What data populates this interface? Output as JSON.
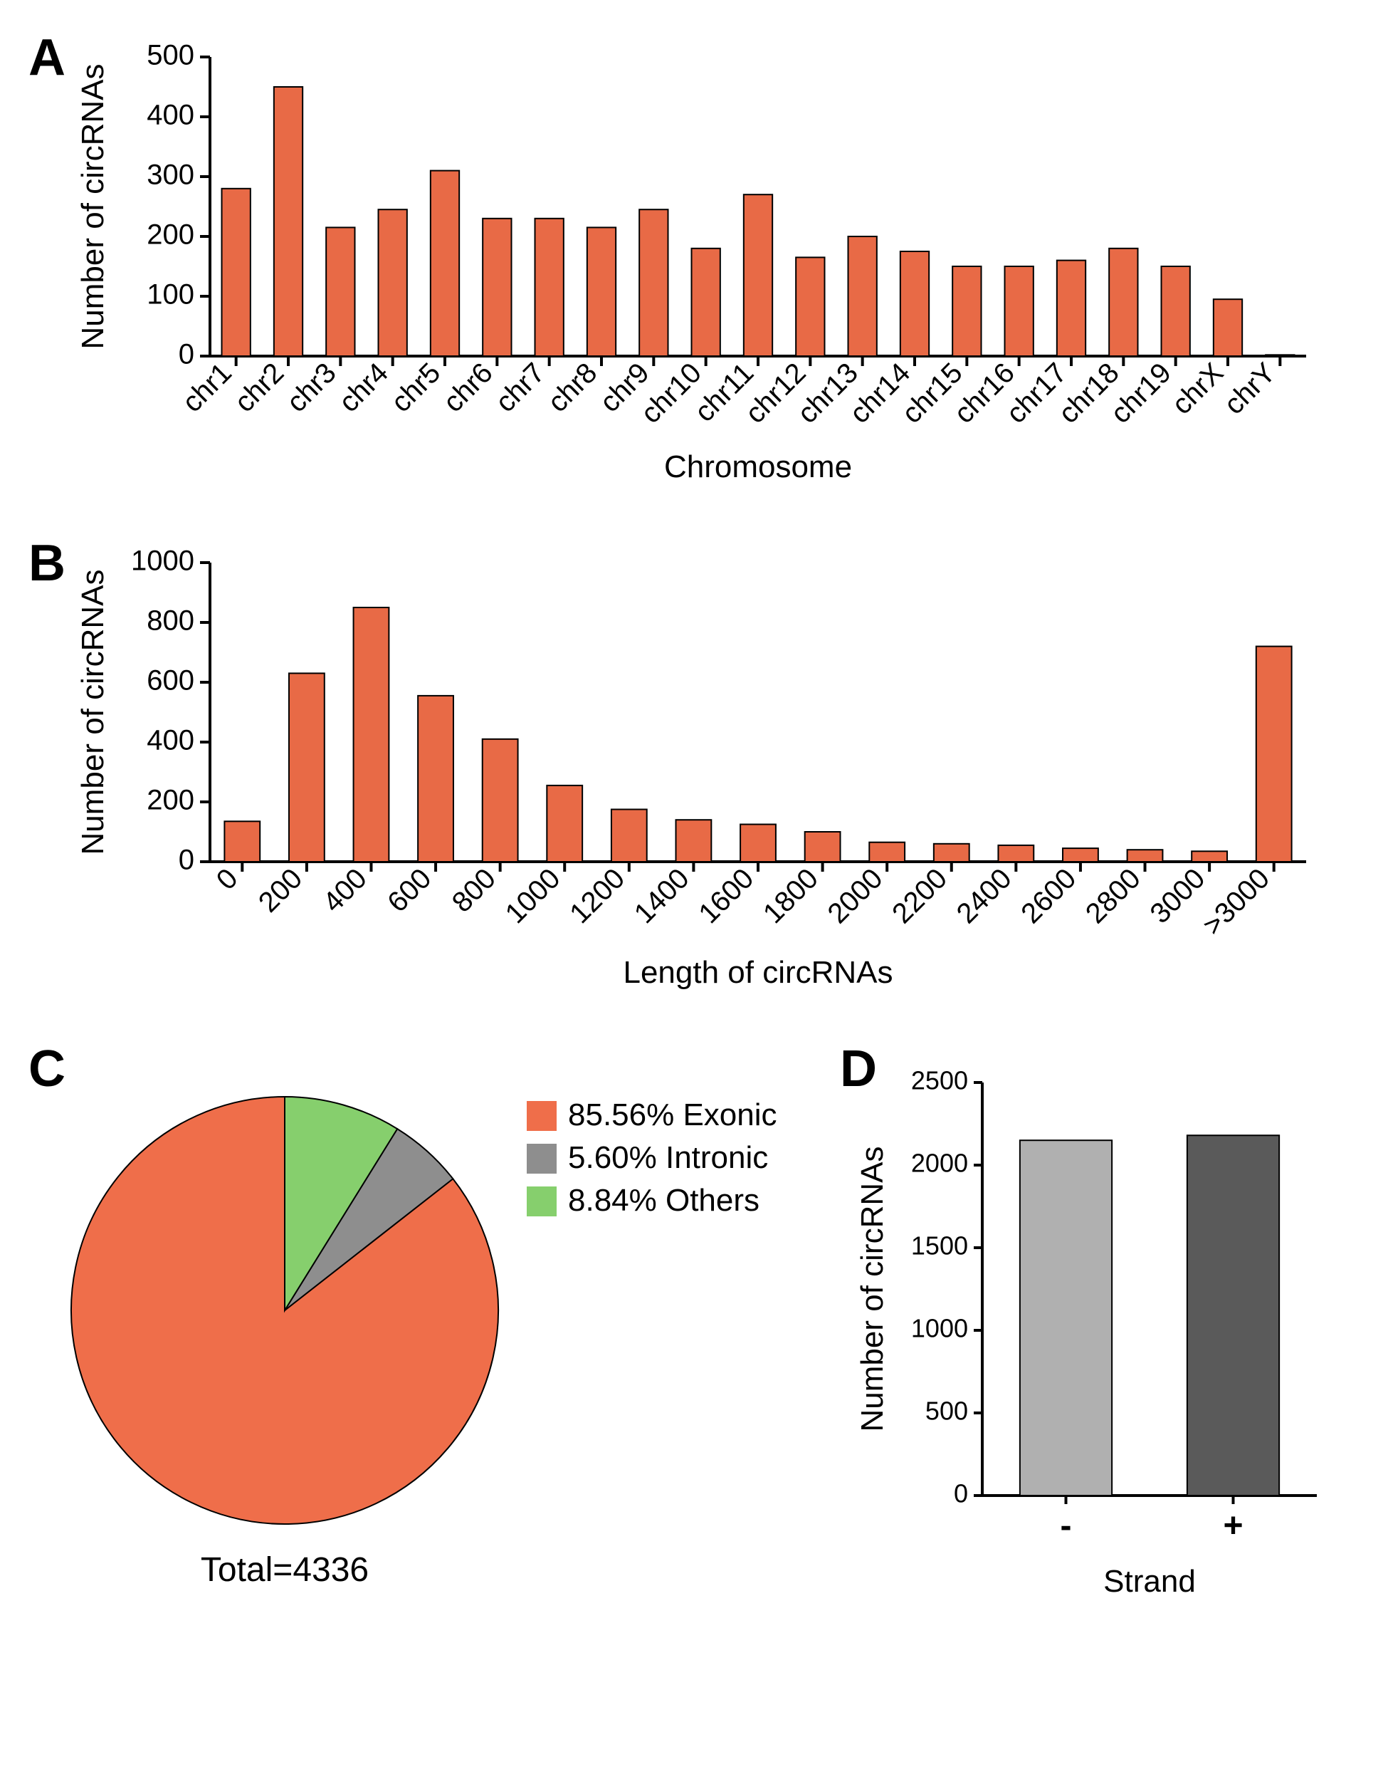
{
  "colors": {
    "bar_fill": "#e86a46",
    "bar_stroke": "#000000",
    "axis": "#000000",
    "text": "#000000",
    "pie_exonic": "#ef6e4a",
    "pie_intronic": "#8e8e8e",
    "pie_others": "#86cf6d",
    "bar_d_minus": "#b0b0b0",
    "bar_d_plus": "#5a5a5a",
    "background": "#ffffff"
  },
  "panelA": {
    "label": "A",
    "title": "",
    "ylabel": "Number of circRNAs",
    "xlabel": "Chromosome",
    "ylim": [
      0,
      500
    ],
    "ytick_step": 100,
    "bar_width": 0.55,
    "axis_fontsize": 44,
    "tick_fontsize": 40,
    "tick_rotate": -45,
    "categories": [
      "chr1",
      "chr2",
      "chr3",
      "chr4",
      "chr5",
      "chr6",
      "chr7",
      "chr8",
      "chr9",
      "chr10",
      "chr11",
      "chr12",
      "chr13",
      "chr14",
      "chr15",
      "chr16",
      "chr17",
      "chr18",
      "chr19",
      "chrX",
      "chrY"
    ],
    "values": [
      280,
      450,
      215,
      245,
      310,
      230,
      230,
      215,
      245,
      180,
      270,
      165,
      200,
      175,
      150,
      150,
      160,
      180,
      150,
      95,
      2
    ]
  },
  "panelB": {
    "label": "B",
    "ylabel": "Number of circRNAs",
    "xlabel": "Length of circRNAs",
    "ylim": [
      0,
      1000
    ],
    "ytick_step": 200,
    "bar_width": 0.55,
    "axis_fontsize": 44,
    "tick_fontsize": 40,
    "tick_rotate": -45,
    "categories": [
      "0",
      "200",
      "400",
      "600",
      "800",
      "1000",
      "1200",
      "1400",
      "1600",
      "1800",
      "2000",
      "2200",
      "2400",
      "2600",
      "2800",
      "3000",
      ">3000"
    ],
    "values": [
      135,
      630,
      850,
      555,
      410,
      255,
      175,
      140,
      125,
      100,
      65,
      60,
      55,
      45,
      40,
      35,
      720
    ]
  },
  "panelC": {
    "label": "C",
    "total_label": "Total=4336",
    "total_fontsize": 48,
    "legend_fontsize": 44,
    "slices": [
      {
        "label": "85.56% Exonic",
        "value": 85.56,
        "color_key": "pie_exonic"
      },
      {
        "label": "5.60% Intronic",
        "value": 5.6,
        "color_key": "pie_intronic"
      },
      {
        "label": "8.84% Others",
        "value": 8.84,
        "color_key": "pie_others"
      }
    ],
    "start_angle_deg": -90,
    "direction": "ccw",
    "stroke": "#000000"
  },
  "panelD": {
    "label": "D",
    "ylabel": "Number of circRNAs",
    "xlabel": "Strand",
    "ylim": [
      0,
      2500
    ],
    "ytick_step": 500,
    "bar_width": 0.55,
    "axis_fontsize": 44,
    "tick_fontsize": 48,
    "categories": [
      "-",
      "+"
    ],
    "values": [
      2150,
      2180
    ],
    "bar_color_keys": [
      "bar_d_minus",
      "bar_d_plus"
    ]
  }
}
